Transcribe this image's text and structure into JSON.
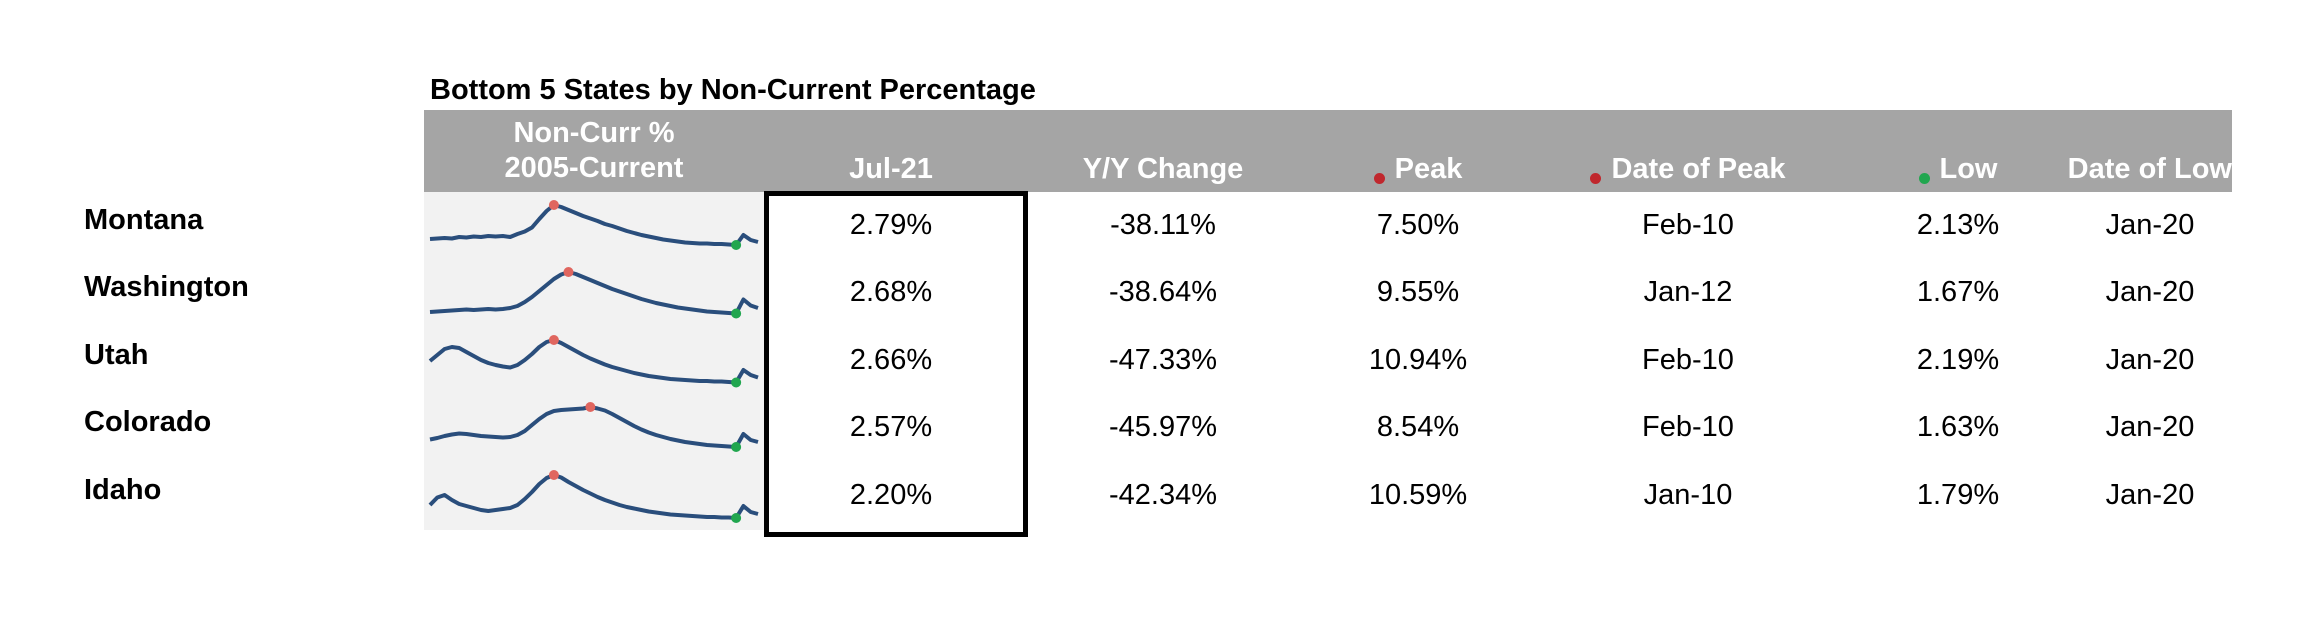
{
  "title": "Bottom 5 States by Non-Current Percentage",
  "headers": {
    "spark_line1": "Non-Curr %",
    "spark_line2": "2005-Current",
    "jul21": "Jul-21",
    "yoy": "Y/Y Change",
    "peak": "Peak",
    "date_peak": "Date of Peak",
    "low": "Low",
    "date_low": "Date of Low"
  },
  "colors": {
    "header_bg": "#a5a5a5",
    "peak_dot": "#c0272d",
    "low_dot": "#21a64f",
    "spark_line": "#2a4e7c"
  },
  "chart_data": {
    "type": "table",
    "columns": [
      "Non-Curr % 2005-Current",
      "Jul-21",
      "Y/Y Change",
      "Peak",
      "Date of Peak",
      "Low",
      "Date of Low"
    ],
    "rows": [
      {
        "state": "Montana",
        "jul21": "2.79%",
        "yoy": "-38.11%",
        "peak": "7.50%",
        "date_peak": "Feb-10",
        "low": "2.13%",
        "date_low": "Jan-20"
      },
      {
        "state": "Washington",
        "jul21": "2.68%",
        "yoy": "-38.64%",
        "peak": "9.55%",
        "date_peak": "Jan-12",
        "low": "1.67%",
        "date_low": "Jan-20"
      },
      {
        "state": "Utah",
        "jul21": "2.66%",
        "yoy": "-47.33%",
        "peak": "10.94%",
        "date_peak": "Feb-10",
        "low": "2.19%",
        "date_low": "Jan-20"
      },
      {
        "state": "Colorado",
        "jul21": "2.57%",
        "yoy": "-45.97%",
        "peak": "8.54%",
        "date_peak": "Feb-10",
        "low": "1.63%",
        "date_low": "Jan-20"
      },
      {
        "state": "Idaho",
        "jul21": "2.20%",
        "yoy": "-42.34%",
        "peak": "10.59%",
        "date_peak": "Jan-10",
        "low": "1.79%",
        "date_low": "Jan-20"
      }
    ],
    "sparklines": [
      [
        0.32,
        0.33,
        0.34,
        0.33,
        0.36,
        0.35,
        0.37,
        0.36,
        0.38,
        0.37,
        0.38,
        0.36,
        0.42,
        0.47,
        0.55,
        0.72,
        0.88,
        1.0,
        0.96,
        0.9,
        0.84,
        0.78,
        0.73,
        0.68,
        0.62,
        0.58,
        0.53,
        0.48,
        0.44,
        0.4,
        0.37,
        0.34,
        0.31,
        0.29,
        0.27,
        0.25,
        0.24,
        0.23,
        0.23,
        0.22,
        0.22,
        0.21,
        0.2,
        0.4,
        0.3,
        0.26
      ],
      [
        0.2,
        0.21,
        0.22,
        0.23,
        0.24,
        0.25,
        0.24,
        0.25,
        0.26,
        0.25,
        0.26,
        0.28,
        0.32,
        0.4,
        0.5,
        0.62,
        0.74,
        0.86,
        0.95,
        1.0,
        0.96,
        0.9,
        0.84,
        0.78,
        0.72,
        0.66,
        0.61,
        0.56,
        0.51,
        0.46,
        0.42,
        0.38,
        0.35,
        0.32,
        0.29,
        0.27,
        0.25,
        0.23,
        0.21,
        0.2,
        0.19,
        0.18,
        0.17,
        0.45,
        0.33,
        0.28
      ],
      [
        0.58,
        0.7,
        0.82,
        0.86,
        0.84,
        0.76,
        0.68,
        0.6,
        0.54,
        0.5,
        0.47,
        0.45,
        0.5,
        0.6,
        0.72,
        0.86,
        0.96,
        1.0,
        0.94,
        0.86,
        0.78,
        0.7,
        0.63,
        0.57,
        0.51,
        0.46,
        0.42,
        0.38,
        0.34,
        0.31,
        0.28,
        0.26,
        0.24,
        0.22,
        0.21,
        0.2,
        0.19,
        0.18,
        0.18,
        0.17,
        0.17,
        0.16,
        0.15,
        0.4,
        0.3,
        0.25
      ],
      [
        0.35,
        0.38,
        0.42,
        0.45,
        0.47,
        0.46,
        0.44,
        0.42,
        0.41,
        0.4,
        0.39,
        0.4,
        0.44,
        0.52,
        0.64,
        0.76,
        0.86,
        0.92,
        0.94,
        0.95,
        0.96,
        0.97,
        1.0,
        0.97,
        0.93,
        0.86,
        0.78,
        0.7,
        0.62,
        0.55,
        0.49,
        0.44,
        0.4,
        0.36,
        0.33,
        0.3,
        0.28,
        0.26,
        0.24,
        0.23,
        0.22,
        0.21,
        0.2,
        0.46,
        0.34,
        0.3
      ],
      [
        0.4,
        0.55,
        0.6,
        0.5,
        0.42,
        0.38,
        0.34,
        0.3,
        0.28,
        0.3,
        0.32,
        0.34,
        0.4,
        0.52,
        0.66,
        0.82,
        0.94,
        1.0,
        0.95,
        0.86,
        0.78,
        0.7,
        0.63,
        0.56,
        0.5,
        0.45,
        0.4,
        0.36,
        0.33,
        0.3,
        0.27,
        0.25,
        0.23,
        0.21,
        0.2,
        0.19,
        0.18,
        0.17,
        0.16,
        0.16,
        0.15,
        0.15,
        0.14,
        0.38,
        0.26,
        0.22
      ]
    ],
    "sparkline_peak_index": [
      17,
      19,
      17,
      22,
      17
    ],
    "sparkline_low_index": [
      42,
      42,
      42,
      42,
      42
    ]
  }
}
